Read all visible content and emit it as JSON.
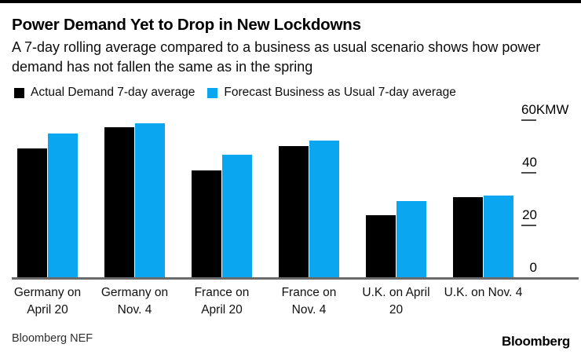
{
  "header": {
    "title": "Power Demand Yet to Drop in New Lockdowns",
    "subtitle": "A 7-day rolling average compared to a business as usual scenario shows how power demand has not fallen the same as in the spring"
  },
  "legend": {
    "items": [
      {
        "label": "Actual Demand 7-day average"
      },
      {
        "label": "Forecast Business as Usual 7-day average"
      }
    ]
  },
  "chart_data": {
    "type": "bar",
    "title": "Power Demand Yet to Drop in New Lockdowns",
    "subtitle": "A 7-day rolling average compared to a business as usual scenario shows how power demand has not fallen the same as in the spring",
    "unit": "KMW",
    "ylabel": "",
    "xlabel": "",
    "ylim": [
      0,
      60
    ],
    "grid": false,
    "legend_position": "top-left",
    "y_axis_side": "right",
    "categories": [
      "Germany on April 20",
      "Germany on Nov. 4",
      "France on April 20",
      "France on Nov. 4",
      "U.K. on April 20",
      "U.K. on Nov. 4"
    ],
    "category_lines": [
      [
        "Germany on",
        "April 20"
      ],
      [
        "Germany on",
        "Nov. 4"
      ],
      [
        "France on",
        "April 20"
      ],
      [
        "France on",
        "Nov. 4"
      ],
      [
        "U.K. on April",
        "20"
      ],
      [
        "U.K. on Nov. 4"
      ]
    ],
    "yticks": [
      {
        "value": 0,
        "label": "0"
      },
      {
        "value": 20,
        "label": "20"
      },
      {
        "value": 40,
        "label": "40"
      },
      {
        "value": 60,
        "label": "60KMW"
      }
    ],
    "series": [
      {
        "name": "Actual Demand 7-day average",
        "color": "#000000",
        "values": [
          49,
          57,
          40.5,
          50,
          23.5,
          30.5
        ]
      },
      {
        "name": "Forecast Business as Usual 7-day average",
        "color": "#0aa7f0",
        "values": [
          54.5,
          58.5,
          46.5,
          52,
          29,
          31
        ]
      }
    ]
  },
  "footer": {
    "source": "Bloomberg NEF",
    "brand": "Bloomberg"
  }
}
